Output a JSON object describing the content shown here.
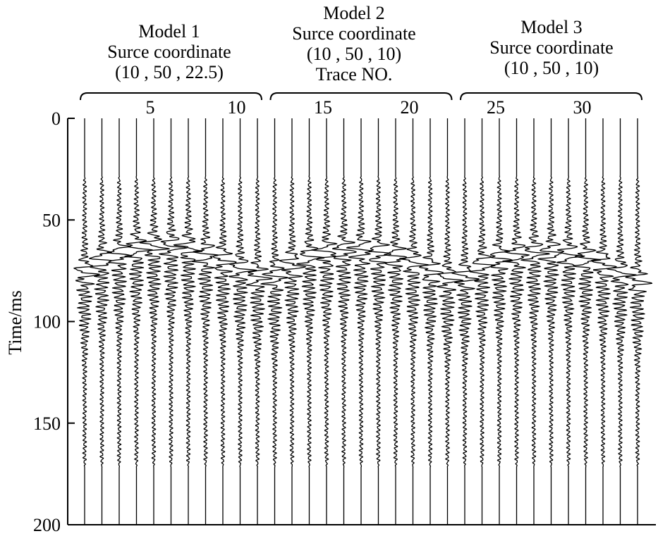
{
  "chart_data": {
    "type": "line",
    "subtype": "seismic-wiggle-traces",
    "ylabel": "Time/ms",
    "ylim": [
      0,
      200
    ],
    "y_inverted": true,
    "y_ticks": [
      "0",
      "50",
      "100",
      "150",
      "200"
    ],
    "x_label": "Trace NO.",
    "x_ticks": [
      "5",
      "10",
      "15",
      "20",
      "25",
      "30"
    ],
    "trace_count": 33,
    "groups": [
      {
        "title": "Model 1",
        "coord_label": "Surce coordinate",
        "coord": "(10 , 50 , 22.5)",
        "traces": [
          1,
          11
        ],
        "signal_start_ms": 28,
        "signal_end_ms": 172,
        "first_arrival_ms": [
          76,
          70,
          67,
          64,
          63,
          63,
          64,
          67,
          70,
          74,
          78
        ]
      },
      {
        "title": "Model 2",
        "coord_label": "Surce coordinate",
        "coord": "(10 , 50 , 10)",
        "traces": [
          12,
          22
        ],
        "signal_start_ms": 28,
        "signal_end_ms": 172,
        "first_arrival_ms": [
          78,
          72,
          68,
          66,
          65,
          65,
          66,
          68,
          71,
          75,
          79
        ]
      },
      {
        "title": "Model 3",
        "coord_label": "Surce coordinate",
        "coord": "(10 , 50 , 10)",
        "traces": [
          23,
          33
        ],
        "signal_start_ms": 28,
        "signal_end_ms": 172,
        "first_arrival_ms": [
          78,
          72,
          69,
          67,
          66,
          66,
          67,
          69,
          72,
          76,
          80
        ]
      }
    ]
  }
}
